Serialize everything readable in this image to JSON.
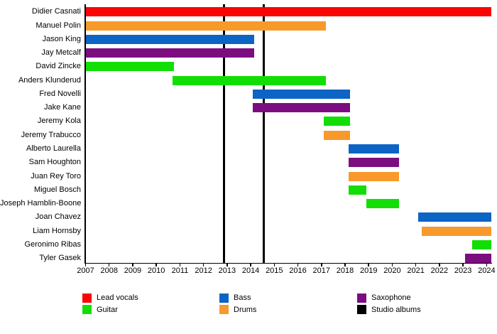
{
  "chart_data": {
    "type": "bar",
    "subtype": "timeline-gantt",
    "title": "",
    "xlabel": "",
    "ylabel": "",
    "x_axis": {
      "min": 2007,
      "max": 2024.2,
      "ticks": [
        2007,
        2008,
        2009,
        2010,
        2011,
        2012,
        2013,
        2014,
        2015,
        2016,
        2017,
        2018,
        2019,
        2020,
        2021,
        2022,
        2023,
        2024
      ]
    },
    "legend": [
      {
        "key": "lead_vocals",
        "label": "Lead vocals",
        "color": "#fa0505"
      },
      {
        "key": "guitar",
        "label": "Guitar",
        "color": "#12de05"
      },
      {
        "key": "bass",
        "label": "Bass",
        "color": "#0c64c4"
      },
      {
        "key": "drums",
        "label": "Drums",
        "color": "#f8992b"
      },
      {
        "key": "saxophone",
        "label": "Saxophone",
        "color": "#7b0d80"
      },
      {
        "key": "studio_albums",
        "label": "Studio albums",
        "color": "#000000"
      }
    ],
    "studio_album_years": [
      2012.88,
      2014.55
    ],
    "members": [
      {
        "name": "Didier Casnati",
        "role": "lead_vocals",
        "start": 2007,
        "end": 2024.2
      },
      {
        "name": "Manuel Polin",
        "role": "drums",
        "start": 2007,
        "end": 2017.2
      },
      {
        "name": "Jason King",
        "role": "bass",
        "start": 2007,
        "end": 2014.15
      },
      {
        "name": "Jay Metcalf",
        "role": "saxophone",
        "start": 2007,
        "end": 2014.15
      },
      {
        "name": "David Zincke",
        "role": "guitar",
        "start": 2007,
        "end": 2010.75
      },
      {
        "name": "Anders Klunderud",
        "role": "guitar",
        "start": 2010.7,
        "end": 2017.2
      },
      {
        "name": "Fred Novelli",
        "role": "bass",
        "start": 2014.1,
        "end": 2018.2
      },
      {
        "name": "Jake Kane",
        "role": "saxophone",
        "start": 2014.1,
        "end": 2018.2
      },
      {
        "name": "Jeremy Kola",
        "role": "guitar",
        "start": 2017.1,
        "end": 2018.2
      },
      {
        "name": "Jeremy Trabucco",
        "role": "drums",
        "start": 2017.1,
        "end": 2018.2
      },
      {
        "name": "Alberto Laurella",
        "role": "bass",
        "start": 2018.15,
        "end": 2020.3
      },
      {
        "name": "Sam Houghton",
        "role": "saxophone",
        "start": 2018.15,
        "end": 2020.3
      },
      {
        "name": "Juan Rey Toro",
        "role": "drums",
        "start": 2018.15,
        "end": 2020.3
      },
      {
        "name": "Miguel Bosch",
        "role": "guitar",
        "start": 2018.15,
        "end": 2018.9
      },
      {
        "name": "Joseph Hamblin-Boone",
        "role": "guitar",
        "start": 2018.9,
        "end": 2020.3
      },
      {
        "name": "Joan Chavez",
        "role": "bass",
        "start": 2021.1,
        "end": 2024.2
      },
      {
        "name": "Liam Hornsby",
        "role": "drums",
        "start": 2021.25,
        "end": 2024.2
      },
      {
        "name": "Geronimo Ribas",
        "role": "guitar",
        "start": 2023.4,
        "end": 2024.2
      },
      {
        "name": "Tyler Gasek",
        "role": "saxophone",
        "start": 2023.1,
        "end": 2024.2
      }
    ]
  }
}
